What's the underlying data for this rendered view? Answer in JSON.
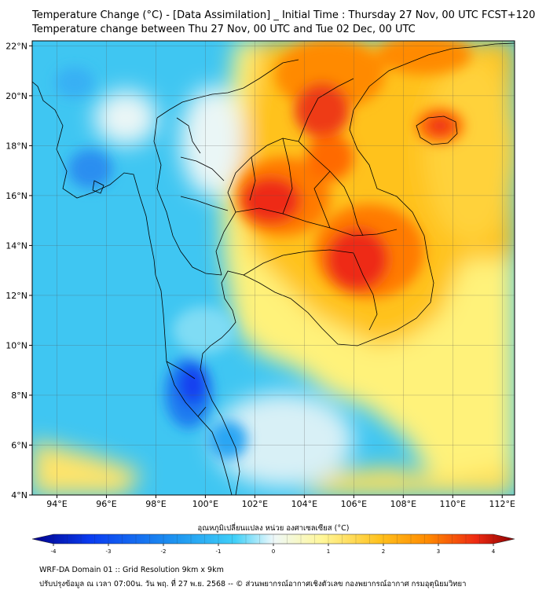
{
  "header": {
    "title_line1": "Temperature Change (°C) - [Data Assimilation] _ Initial Time : Thursday 27 Nov, 00 UTC FCST+120",
    "title_line2": "Temperature change between Thu 27 Nov, 00 UTC and Tue 02 Dec, 00 UTC"
  },
  "map": {
    "lon_range": [
      93,
      112.5
    ],
    "lat_range": [
      4,
      22.2
    ],
    "lon_ticks": [
      {
        "value": 94,
        "label": "94°E"
      },
      {
        "value": 96,
        "label": "96°E"
      },
      {
        "value": 98,
        "label": "98°E"
      },
      {
        "value": 100,
        "label": "100°E"
      },
      {
        "value": 102,
        "label": "102°E"
      },
      {
        "value": 104,
        "label": "104°E"
      },
      {
        "value": 106,
        "label": "106°E"
      },
      {
        "value": 108,
        "label": "108°E"
      },
      {
        "value": 110,
        "label": "110°E"
      },
      {
        "value": 112,
        "label": "112°E"
      }
    ],
    "lat_ticks": [
      {
        "value": 4,
        "label": "4°N"
      },
      {
        "value": 6,
        "label": "6°N"
      },
      {
        "value": 8,
        "label": "8°N"
      },
      {
        "value": 10,
        "label": "10°N"
      },
      {
        "value": 12,
        "label": "12°N"
      },
      {
        "value": 14,
        "label": "14°N"
      },
      {
        "value": 16,
        "label": "16°N"
      },
      {
        "value": 18,
        "label": "18°N"
      },
      {
        "value": 20,
        "label": "20°N"
      },
      {
        "value": 22,
        "label": "22°N"
      }
    ]
  },
  "colorbar": {
    "label": "อุณหภูมิเปลี่ยนแปลง หน่วย องศาเซลเซียส (°C)",
    "min": -4,
    "max": 4,
    "ticks": [
      {
        "value": -4,
        "label": "-4"
      },
      {
        "value": -3,
        "label": "-3"
      },
      {
        "value": -2,
        "label": "-2"
      },
      {
        "value": -1,
        "label": "-1"
      },
      {
        "value": 0,
        "label": "0"
      },
      {
        "value": 1,
        "label": "1"
      },
      {
        "value": 2,
        "label": "2"
      },
      {
        "value": 3,
        "label": "3"
      },
      {
        "value": 4,
        "label": "4"
      }
    ],
    "colors": [
      "#00008c",
      "#0a3cf0",
      "#1e96f0",
      "#40d0f8",
      "#eef8fa",
      "#fff79a",
      "#ffc21e",
      "#ff8a00",
      "#ee2a12",
      "#8c0000"
    ]
  },
  "footer": {
    "line1": "WRF-DA Domain 01 :: Grid Resolution 9km x 9km",
    "line2": "ปรับปรุงข้อมูล ณ เวลา 07:00น. วัน พฤ. ที่ 27 พ.ย. 2568 -- © ส่วนพยากรณ์อากาศเชิงตัวเลข กองพยากรณ์อากาศ กรมอุตุนิยมวิทยา"
  }
}
